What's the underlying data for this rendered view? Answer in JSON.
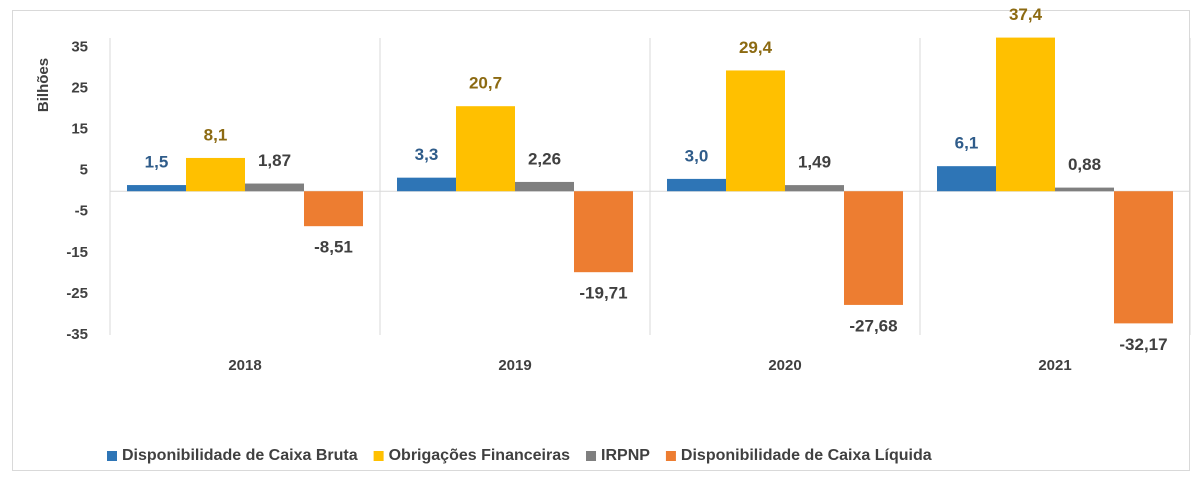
{
  "chart_data": {
    "type": "bar",
    "y_axis_label": "Bilhões",
    "categories": [
      "2018",
      "2019",
      "2020",
      "2021"
    ],
    "series": [
      {
        "name": "Disponibilidade de Caixa Bruta",
        "color": "#2e75b6",
        "label_color": "#2f5c8a",
        "values": [
          1.5,
          3.3,
          3.0,
          6.1
        ],
        "value_labels": [
          "1,5",
          "3,3",
          "3,0",
          "6,1"
        ]
      },
      {
        "name": "Obrigações Financeiras",
        "color": "#ffc000",
        "label_color": "#8c6a12",
        "values": [
          8.1,
          20.7,
          29.4,
          37.4
        ],
        "value_labels": [
          "8,1",
          "20,7",
          "29,4",
          "37,4"
        ]
      },
      {
        "name": "IRPNP",
        "color": "#7f7f7f",
        "label_color": "#404040",
        "values": [
          1.87,
          2.26,
          1.49,
          0.88
        ],
        "value_labels": [
          "1,87",
          "2,26",
          "1,49",
          "0,88"
        ]
      },
      {
        "name": "Disponibilidade de Caixa Líquida",
        "color": "#ed7d31",
        "label_color": "#404040",
        "values": [
          -8.51,
          -19.71,
          -27.68,
          -32.17
        ],
        "value_labels": [
          "-8,51",
          "-19,71",
          "-27,68",
          "-32,17"
        ]
      }
    ],
    "ylim": [
      -35,
      37.3
    ],
    "yticks": [
      35,
      25,
      15,
      5,
      -5,
      -15,
      -25,
      -35
    ],
    "legend": "bottom"
  }
}
